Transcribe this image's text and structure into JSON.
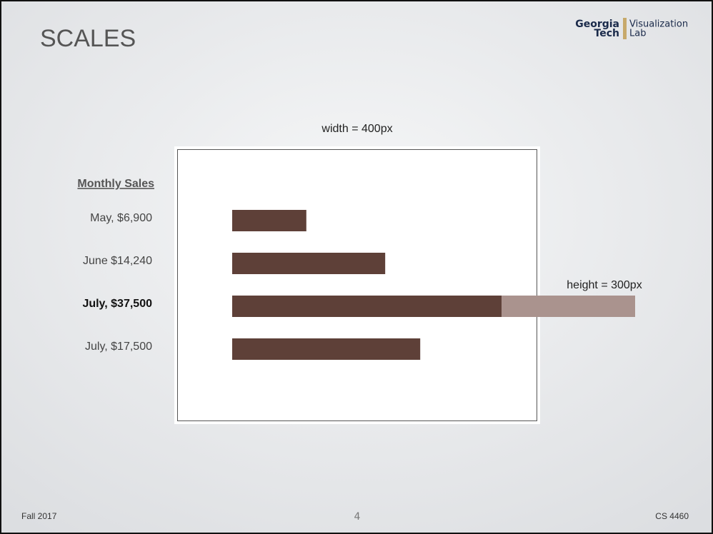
{
  "header": {
    "title": "SCALES",
    "logo": {
      "line1": "Georgia",
      "line2": "Tech",
      "lab1": "Visualization",
      "lab2": "Lab"
    }
  },
  "annotations": {
    "width": "width = 400px",
    "height": "height = 300px"
  },
  "sales": {
    "title": "Monthly Sales",
    "items": [
      {
        "label": "May, $6,900",
        "value": 6900,
        "highlight": false
      },
      {
        "label": "June $14,240",
        "value": 14240,
        "highlight": false
      },
      {
        "label": "July, $37,500",
        "value": 37500,
        "highlight": true
      },
      {
        "label": "July, $17,500",
        "value": 17500,
        "highlight": false
      }
    ]
  },
  "footer": {
    "left": "Fall 2017",
    "page": "4",
    "right": "CS 4460"
  }
}
